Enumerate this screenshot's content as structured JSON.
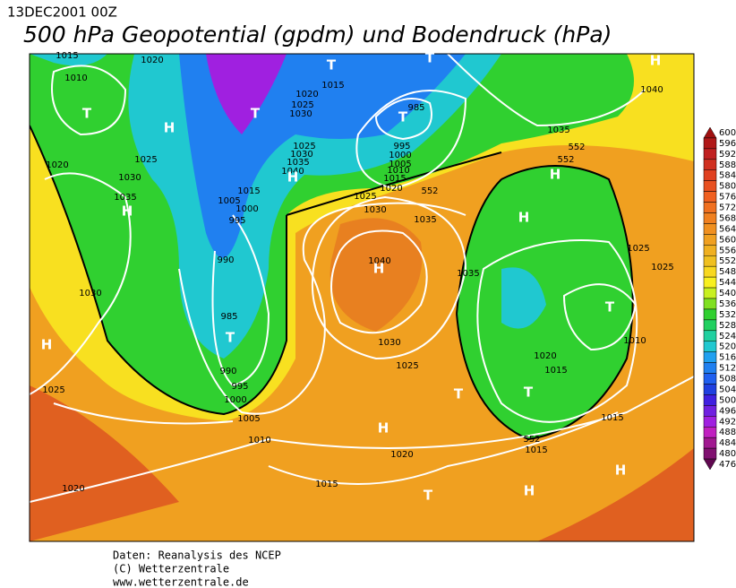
{
  "header": {
    "date": "13DEC2001 00Z",
    "title": "500 hPa Geopotential (gpdm) und Bodendruck (hPa)"
  },
  "footer": [
    "Daten: Reanalysis des NCEP",
    "(C) Wetterzentrale",
    "www.wetterzentrale.de"
  ],
  "map": {
    "labels": [
      "1015",
      "1020",
      "1010",
      "T",
      "H",
      "T",
      "T",
      "1015",
      "1020",
      "1025",
      "1030",
      "T",
      "985",
      "T",
      "H",
      "1040",
      "1035",
      "552",
      "552",
      "1020",
      "1025",
      "1025",
      "1030",
      "1035",
      "1040",
      "H",
      "995",
      "1000",
      "1005",
      "1010",
      "1015",
      "1020",
      "1025",
      "552",
      "1030",
      "1035",
      "H",
      "1015",
      "1005",
      "1000",
      "995",
      "1030",
      "1035",
      "H",
      "H",
      "1025",
      "1025",
      "990",
      "1040",
      "H",
      "1035",
      "1030",
      "985",
      "T",
      "T",
      "1010",
      "H",
      "1030",
      "1020",
      "1025",
      "1015",
      "990",
      "995",
      "1000",
      "1025",
      "T",
      "T",
      "1005",
      "H",
      "1010",
      "1015",
      "552",
      "1015",
      "1020",
      "H",
      "1015",
      "1020",
      "H",
      "T"
    ]
  },
  "colorbar": {
    "levels": [
      600,
      596,
      592,
      588,
      584,
      580,
      576,
      572,
      568,
      564,
      560,
      556,
      552,
      548,
      544,
      540,
      536,
      532,
      528,
      524,
      520,
      516,
      512,
      508,
      504,
      500,
      496,
      492,
      488,
      484,
      480,
      476
    ],
    "colors": [
      "#a01010",
      "#b01818",
      "#c02020",
      "#d03020",
      "#e04020",
      "#e85020",
      "#f06020",
      "#f07020",
      "#f08020",
      "#f09020",
      "#f0a020",
      "#f0b020",
      "#f0c020",
      "#f8d820",
      "#f8f020",
      "#c8f020",
      "#80e020",
      "#30d030",
      "#20d060",
      "#20d0a0",
      "#20c8d0",
      "#20a0f0",
      "#2080f0",
      "#2060f0",
      "#2040e0",
      "#4020e0",
      "#7020e0",
      "#a020e0",
      "#c020c0",
      "#a01890",
      "#801070",
      "#600850"
    ]
  }
}
